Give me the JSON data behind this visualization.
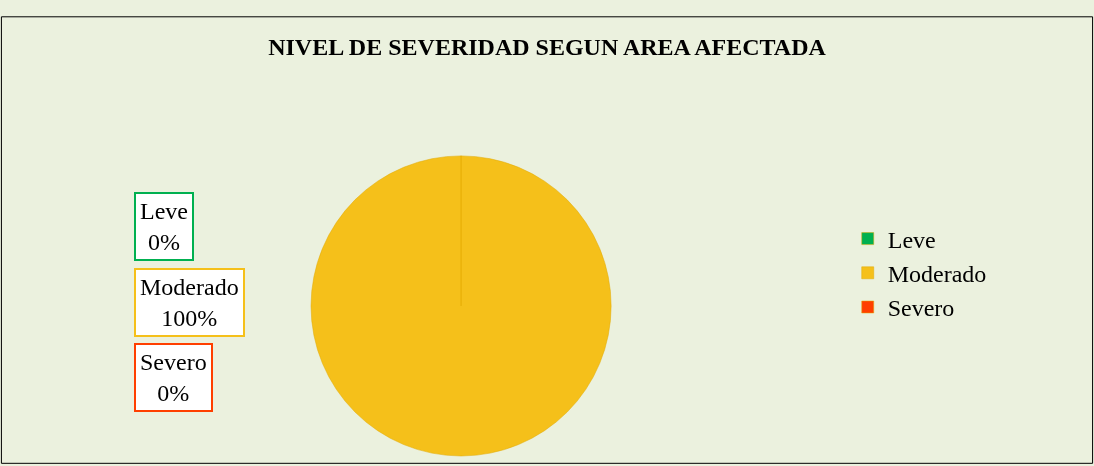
{
  "chart_data": {
    "type": "pie",
    "title": "NIVEL DE SEVERIDAD SEGUN AREA AFECTADA",
    "categories": [
      "Leve",
      "Moderado",
      "Severo"
    ],
    "values": [
      0,
      100,
      0
    ],
    "colors": [
      "#00b050",
      "#f5c01a",
      "#ff3f00"
    ],
    "value_labels": [
      "0%",
      "100%",
      "0%"
    ],
    "legend": "right"
  }
}
